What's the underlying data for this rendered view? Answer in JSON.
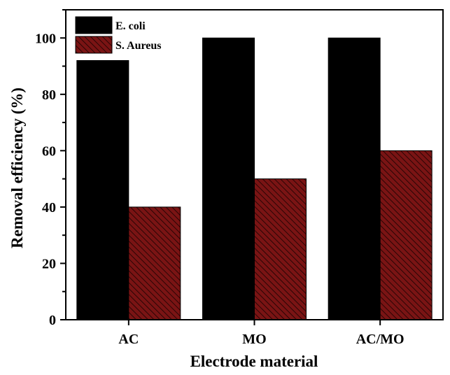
{
  "chart_data": {
    "type": "bar",
    "categories": [
      "AC",
      "MO",
      "AC/MO"
    ],
    "series": [
      {
        "name": "E. coli",
        "values": [
          92,
          100,
          100
        ],
        "color": "#000000",
        "pattern": "solid"
      },
      {
        "name": "S. Aureus",
        "values": [
          40,
          50,
          60
        ],
        "color": "#7a1414",
        "pattern": "diagonal-hatch"
      }
    ],
    "title": "",
    "xlabel": "Electrode material",
    "ylabel": "Removal efficiency (%)",
    "ylim": [
      0,
      110
    ],
    "yticks": [
      0,
      20,
      40,
      60,
      80,
      100
    ],
    "grid": false,
    "legend_position": "top-left"
  }
}
